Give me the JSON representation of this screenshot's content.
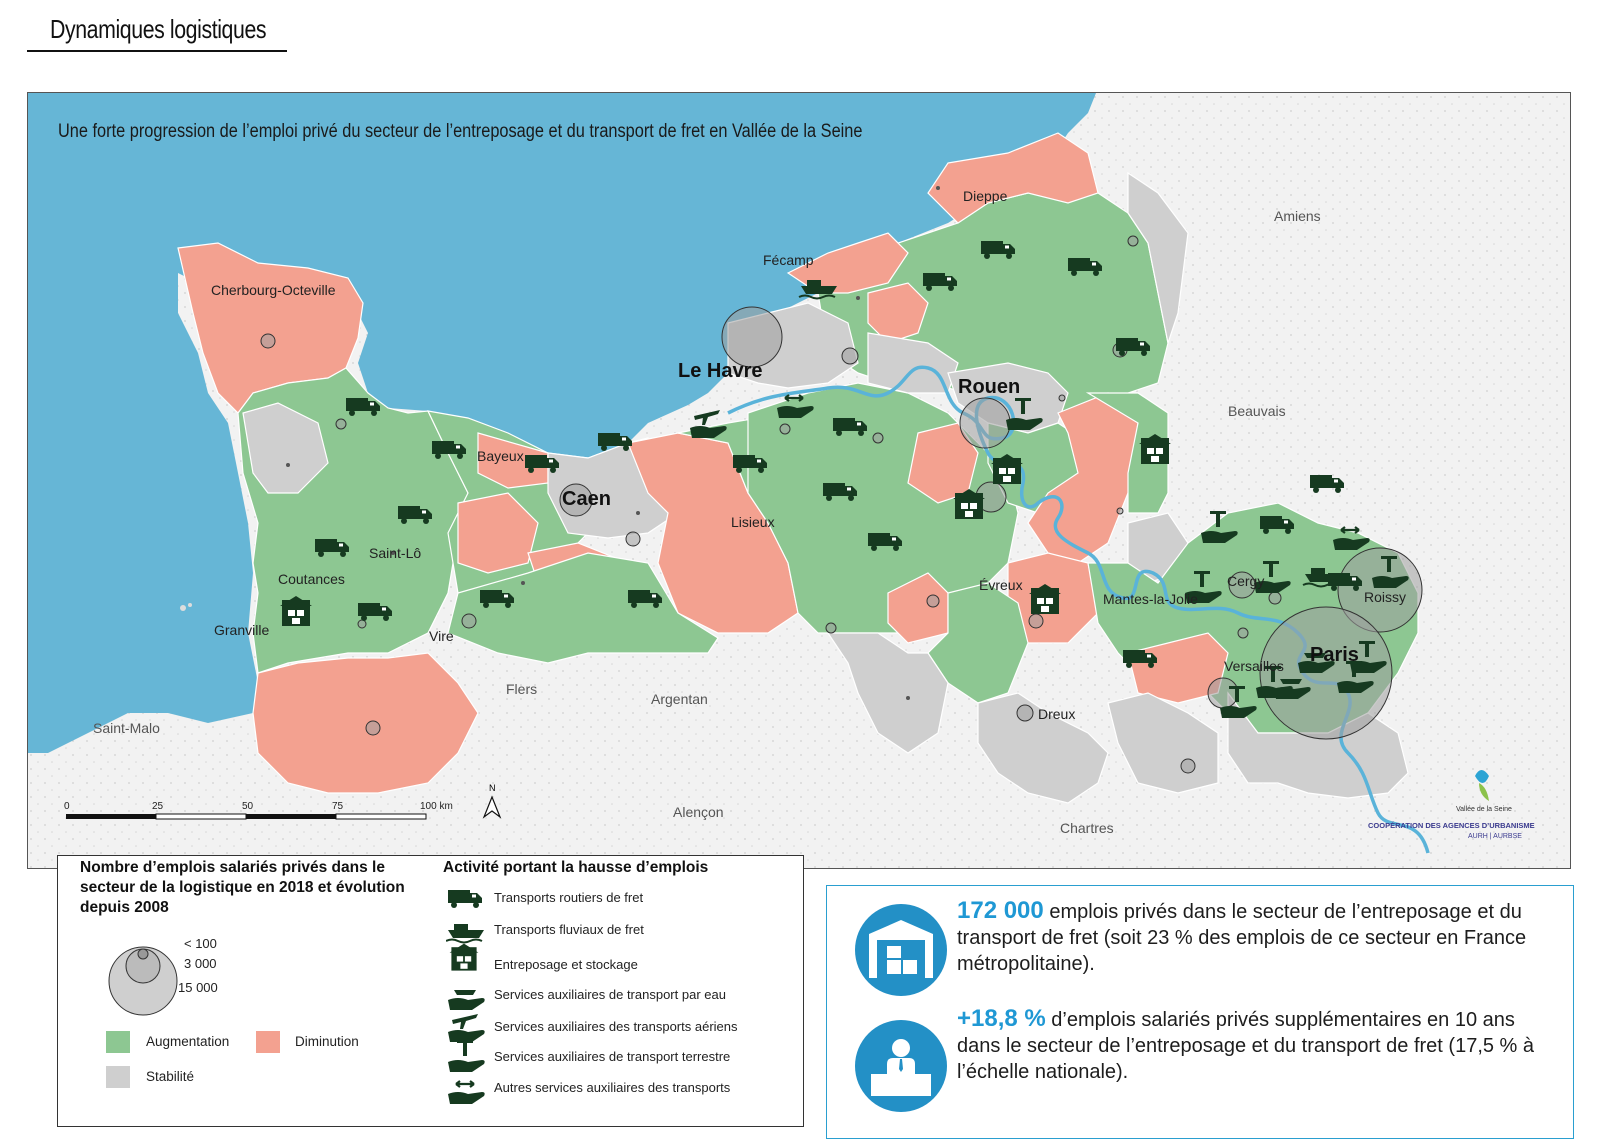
{
  "header": {
    "title": "Dynamiques logistiques"
  },
  "map": {
    "subtitle": "Une forte progression de l’emploi privé du secteur de l’entreposage et du transport de fret en Vallée de la Seine",
    "colors": {
      "sea": "#66b6d6",
      "increase": "#8dc792",
      "decrease": "#f3a190",
      "stable": "#cfcfcf",
      "outside": "#f1f1f1",
      "river": "#5ab3d9",
      "icon": "#163a20"
    },
    "cities": [
      {
        "name": "Dieppe"
      },
      {
        "name": "Fécamp"
      },
      {
        "name": "Cherbourg-Octeville"
      },
      {
        "name": "Le Havre"
      },
      {
        "name": "Rouen"
      },
      {
        "name": "Bayeux"
      },
      {
        "name": "Caen"
      },
      {
        "name": "Lisieux"
      },
      {
        "name": "Saint-Lô"
      },
      {
        "name": "Coutances"
      },
      {
        "name": "Granville"
      },
      {
        "name": "Vire"
      },
      {
        "name": "Évreux"
      },
      {
        "name": "Mantes-la-Jolie"
      },
      {
        "name": "Cergy"
      },
      {
        "name": "Roissy"
      },
      {
        "name": "Paris"
      },
      {
        "name": "Versailles"
      },
      {
        "name": "Dreux"
      },
      {
        "name": "Flers"
      },
      {
        "name": "Argentan"
      },
      {
        "name": "Alençon"
      },
      {
        "name": "Chartres"
      },
      {
        "name": "Saint-Malo"
      },
      {
        "name": "Amiens"
      },
      {
        "name": "Beauvais"
      }
    ],
    "scale": {
      "ticks": [
        "0",
        "25",
        "50",
        "75",
        "100 km"
      ]
    },
    "north": "N",
    "logo": {
      "name": "Vallée de la Seine",
      "line1": "COOPÉRATION DES AGENCES D’URBANISME",
      "line2": "AURH | AURBSE"
    }
  },
  "legend": {
    "size_title": "Nombre d’emplois salariés privés dans le secteur de la logistique en 2018 et évolution depuis 2008",
    "size_labels": [
      "< 100",
      "3 000",
      "15 000"
    ],
    "evolution": [
      "Augmentation",
      "Diminution",
      "Stabilité"
    ],
    "activity_title": "Activité portant la hausse d’emplois",
    "activities": [
      {
        "icon": "truck-icon",
        "label": "Transports routiers de fret"
      },
      {
        "icon": "barge-icon",
        "label": "Transports fluviaux de fret"
      },
      {
        "icon": "warehouse-icon",
        "label": "Entreposage et stockage"
      },
      {
        "icon": "water-services-icon",
        "label": "Services auxiliaires de transport par eau"
      },
      {
        "icon": "air-services-icon",
        "label": "Services auxiliaires des transports aériens"
      },
      {
        "icon": "land-services-icon",
        "label": "Services auxiliaires de transport terrestre"
      },
      {
        "icon": "other-services-icon",
        "label": "Autres services auxiliaires des transports"
      }
    ]
  },
  "info": {
    "stat1_value": "172 000",
    "stat1_text": " emplois privés dans le secteur de l’entreposage et du transport de fret (soit 23 % des emplois de ce secteur en France métropolitaine).",
    "stat2_value": "+18,8 %",
    "stat2_text": " d’emplois salariés privés supplémentaires en 10 ans dans le secteur de l’entreposage et du transport de fret (17,5 % à l’échelle nationale)."
  }
}
